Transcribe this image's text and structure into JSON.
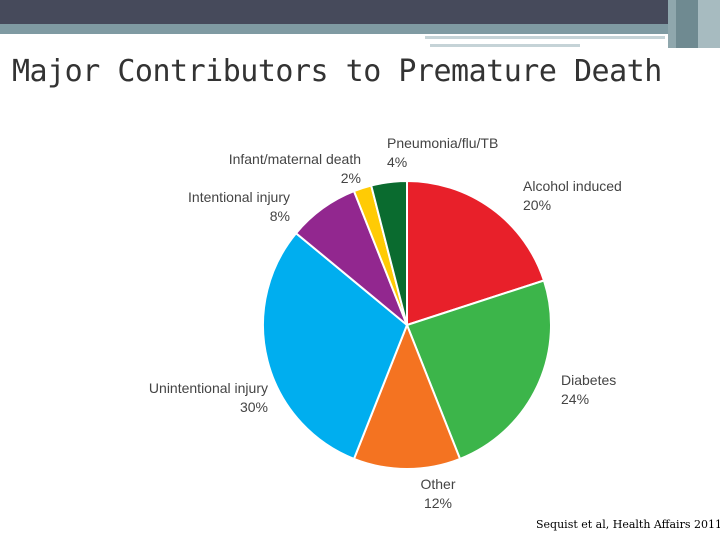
{
  "title": "Major Contributors to Premature Death",
  "source": "Sequist et al, Health Affairs 2011",
  "chart_data": {
    "type": "pie",
    "title": "Major Contributors to Premature Death",
    "slices": [
      {
        "label": "Alcohol induced",
        "value": 20,
        "percent_label": "20%",
        "color": "#e8202a"
      },
      {
        "label": "Diabetes",
        "value": 24,
        "percent_label": "24%",
        "color": "#3cb54a"
      },
      {
        "label": "Other",
        "value": 12,
        "percent_label": "12%",
        "color": "#f47321"
      },
      {
        "label": "Unintentional injury",
        "value": 30,
        "percent_label": "30%",
        "color": "#00aeef"
      },
      {
        "label": "Intentional injury",
        "value": 8,
        "percent_label": "8%",
        "color": "#92278f"
      },
      {
        "label": "Infant/maternal death",
        "value": 2,
        "percent_label": "2%",
        "color": "#ffcb05"
      },
      {
        "label": "Pneumonia/flu/TB",
        "value": 4,
        "percent_label": "4%",
        "color": "#0a6b2f"
      }
    ]
  }
}
